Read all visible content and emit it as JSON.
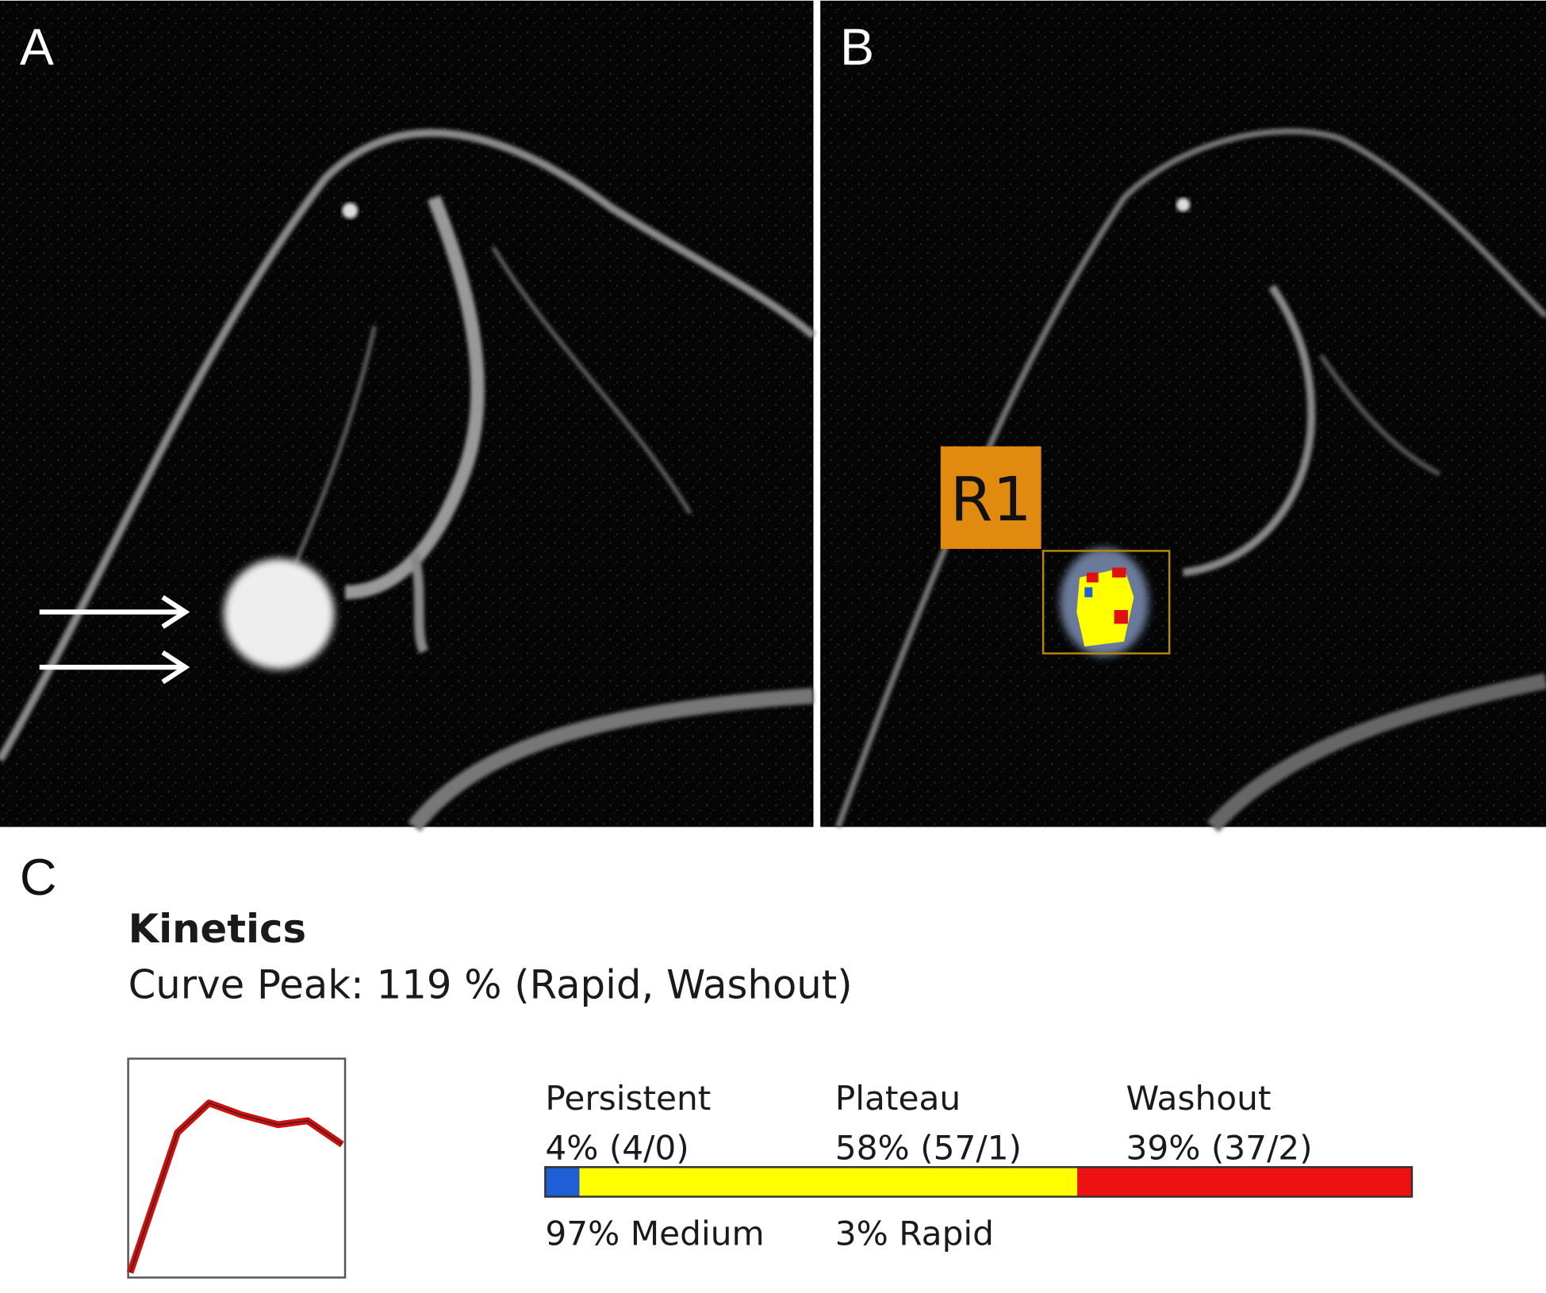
{
  "panels": [
    {
      "label": "A"
    },
    {
      "label": "B",
      "roi_label": "R1"
    },
    {
      "label": "C"
    }
  ],
  "kinetics": {
    "title": "Kinetics",
    "curve_peak": "Curve Peak: 119 % (Rapid, Washout)",
    "segments": [
      {
        "name": "Persistent",
        "value": 4,
        "label": "4% (4/0)",
        "color": "#1f5fd6"
      },
      {
        "name": "Plateau",
        "value": 58,
        "label": "58% (57/1)",
        "color": "#ffff00"
      },
      {
        "name": "Washout",
        "value": 39,
        "label": "39% (37/2)",
        "color": "#ee1111"
      }
    ],
    "speed": [
      "97% Medium",
      "3% Rapid"
    ]
  }
}
